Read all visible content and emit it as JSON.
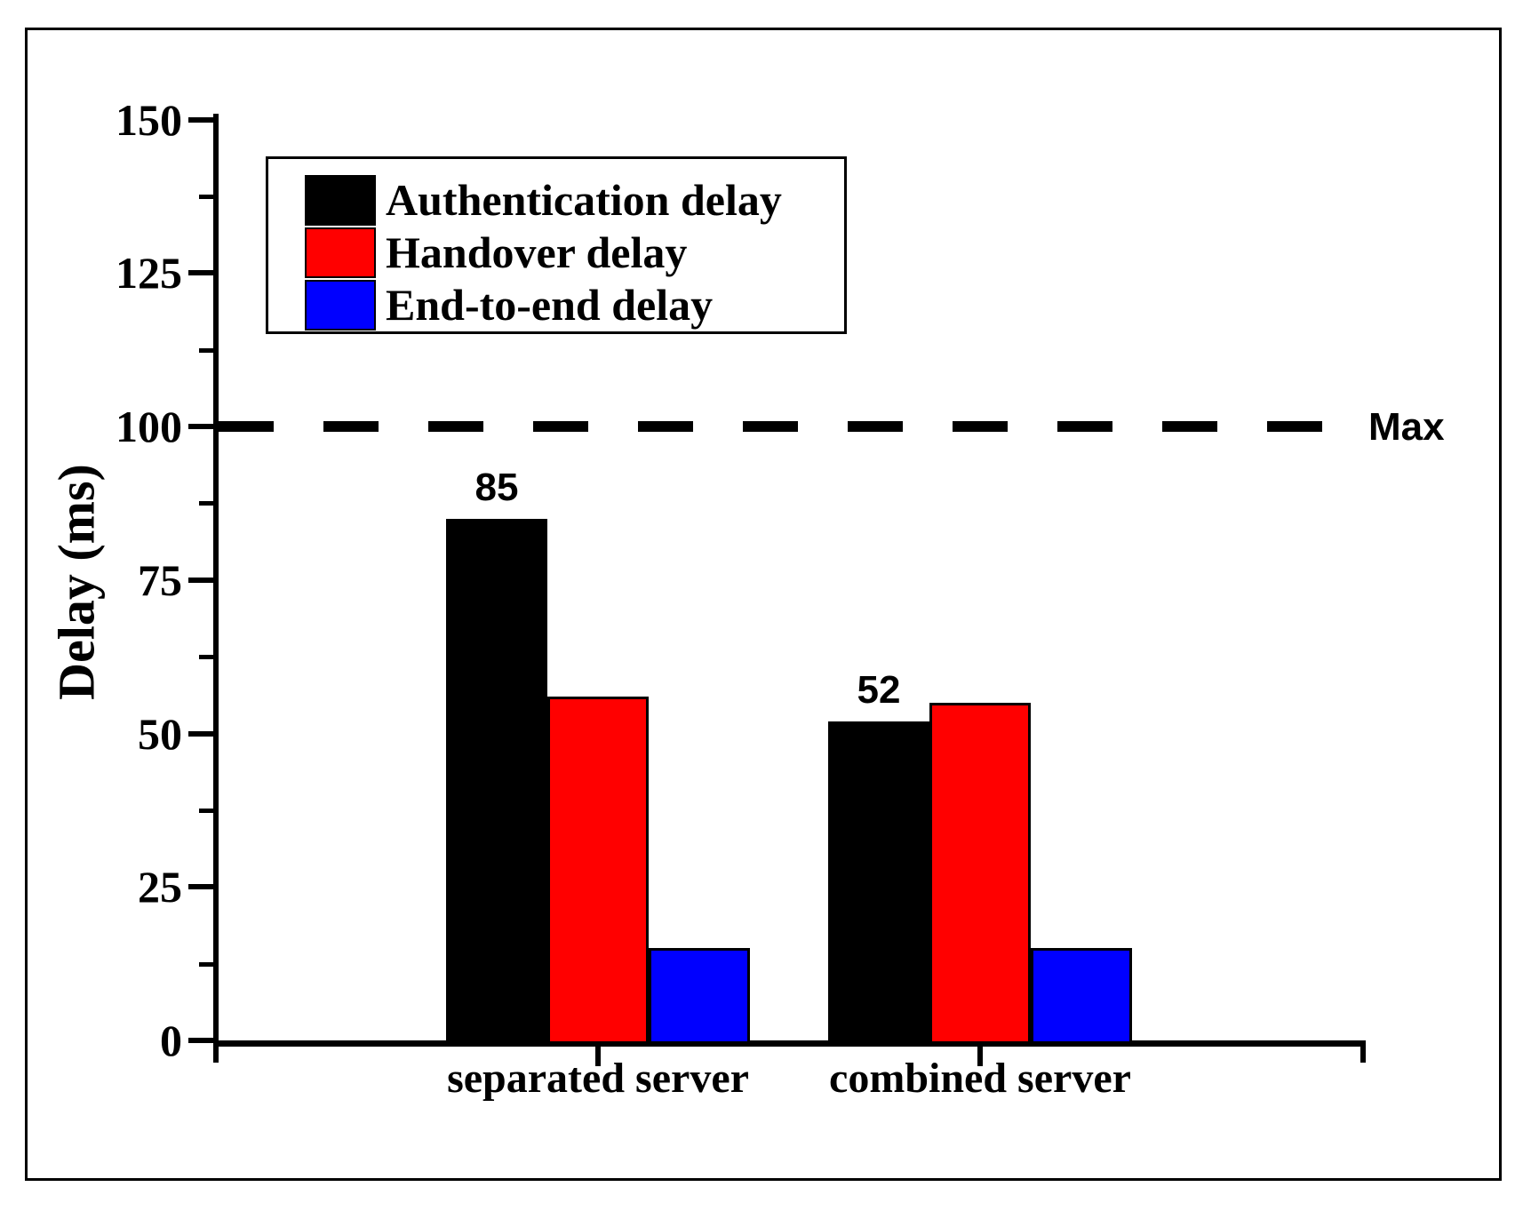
{
  "figure": {
    "background": "#ffffff",
    "border_color": "#000000"
  },
  "chart_data": {
    "type": "bar",
    "title": "",
    "categories": [
      "separated server",
      "combined server"
    ],
    "series": [
      {
        "name": "Authentication delay",
        "color": "#000000",
        "values": [
          85,
          52
        ]
      },
      {
        "name": "Handover delay",
        "color": "#ff0000",
        "values": [
          56,
          55
        ]
      },
      {
        "name": "End-to-end delay",
        "color": "#0000ff",
        "values": [
          15,
          15
        ]
      }
    ],
    "ylabel": "Delay (ms)",
    "xlabel": "",
    "ylim": [
      0,
      150
    ],
    "yticks": [
      0,
      25,
      50,
      75,
      100,
      125,
      150
    ],
    "minor_ytick_step": 12.5,
    "grid": false,
    "legend_position": "upper-left-inside",
    "reference_line": {
      "value": 100,
      "label": "Max",
      "style": "dashed",
      "color": "#000000"
    },
    "value_labels": [
      {
        "text": "85",
        "series": "Authentication delay",
        "category": "separated server"
      },
      {
        "text": "52",
        "series": "Authentication delay",
        "category": "combined server"
      }
    ]
  }
}
